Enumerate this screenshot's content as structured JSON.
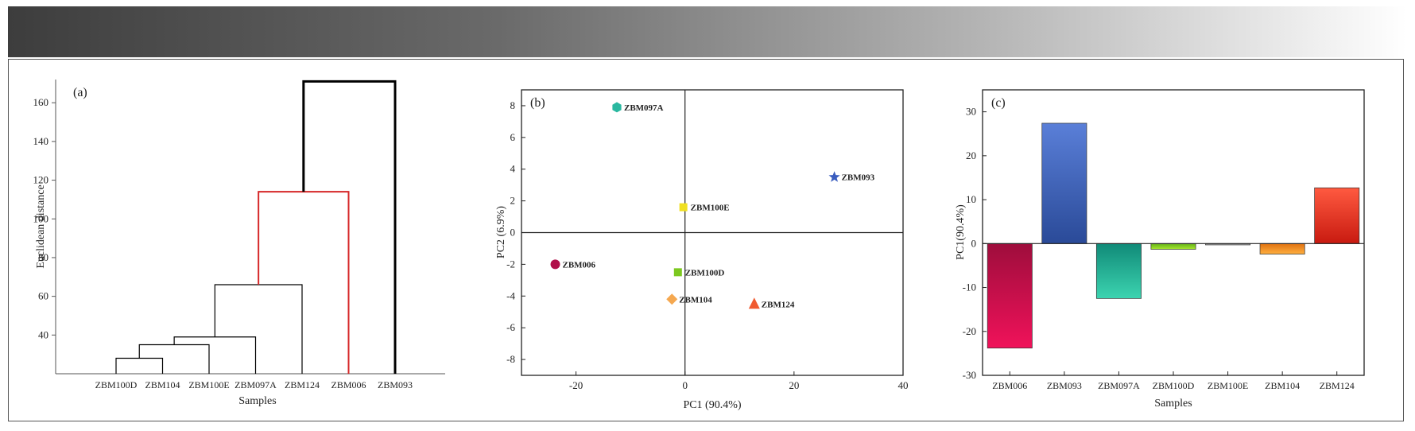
{
  "chart_data": [
    {
      "type": "dendrogram",
      "panel_label": "(a)",
      "xlabel": "Samples",
      "ylabel": "Euclidean distance",
      "ylim": [
        20,
        172
      ],
      "yticks": [
        40,
        60,
        80,
        100,
        120,
        140,
        160
      ],
      "leaves": [
        "ZBM100D",
        "ZBM104",
        "ZBM100E",
        "ZBM097A",
        "ZBM124",
        "ZBM006",
        "ZBM093"
      ],
      "merges": [
        {
          "left": "ZBM100D",
          "right": "ZBM104",
          "height": 28,
          "color": "#000000"
        },
        {
          "left": "cluster1",
          "right": "ZBM100E",
          "height": 35,
          "color": "#000000"
        },
        {
          "left": "cluster2",
          "right": "ZBM097A",
          "height": 39,
          "color": "#000000"
        },
        {
          "left": "cluster3",
          "right": "ZBM124",
          "height": 66,
          "color": "#000000"
        },
        {
          "left": "cluster4",
          "right": "ZBM006",
          "height": 114,
          "color": "#d62728"
        },
        {
          "left": "cluster5",
          "right": "ZBM093",
          "height": 171,
          "color": "#000000"
        }
      ]
    },
    {
      "type": "scatter",
      "panel_label": "(b)",
      "xlabel": "PC1 (90.4%)",
      "ylabel": "PC2 (6.9%)",
      "xlim": [
        -30,
        40
      ],
      "ylim": [
        -9,
        9
      ],
      "xticks": [
        -20,
        0,
        20,
        40
      ],
      "yticks": [
        -8,
        -6,
        -4,
        -2,
        0,
        2,
        4,
        6,
        8
      ],
      "points": [
        {
          "label": "ZBM097A",
          "x": -12.5,
          "y": 7.9,
          "marker": "hexagon",
          "color": "#2ab8a0"
        },
        {
          "label": "ZBM093",
          "x": 27.4,
          "y": 3.5,
          "marker": "star",
          "color": "#3a5dbf"
        },
        {
          "label": "ZBM100E",
          "x": -0.3,
          "y": 1.6,
          "marker": "square",
          "color": "#f0e020"
        },
        {
          "label": "ZBM006",
          "x": -23.8,
          "y": -2.0,
          "marker": "circle",
          "color": "#b0104a"
        },
        {
          "label": "ZBM100D",
          "x": -1.3,
          "y": -2.5,
          "marker": "square",
          "color": "#7cc820"
        },
        {
          "label": "ZBM104",
          "x": -2.4,
          "y": -4.2,
          "marker": "diamond",
          "color": "#f5a850"
        },
        {
          "label": "ZBM124",
          "x": 12.7,
          "y": -4.5,
          "marker": "triangle",
          "color": "#f05a30"
        }
      ]
    },
    {
      "type": "bar",
      "panel_label": "(c)",
      "xlabel": "Samples",
      "ylabel": "PC1(90.4%)",
      "ylim": [
        -30,
        35
      ],
      "yticks": [
        -30,
        -20,
        -10,
        0,
        10,
        20,
        30
      ],
      "categories": [
        "ZBM006",
        "ZBM093",
        "ZBM097A",
        "ZBM100D",
        "ZBM100E",
        "ZBM104",
        "ZBM124"
      ],
      "values": [
        -23.8,
        27.4,
        -12.5,
        -1.3,
        -0.3,
        -2.4,
        12.7
      ],
      "colors": [
        [
          "#f0125a",
          "#9e0d3c"
        ],
        [
          "#5a7fd8",
          "#2a4a98"
        ],
        [
          "#3cd4b0",
          "#108a78"
        ],
        [
          "#a8e830",
          "#62b018"
        ],
        [
          "#b8b8b8",
          "#8a8a8a"
        ],
        [
          "#ffb040",
          "#e07010"
        ],
        [
          "#ff5a40",
          "#c81a10"
        ]
      ]
    }
  ]
}
